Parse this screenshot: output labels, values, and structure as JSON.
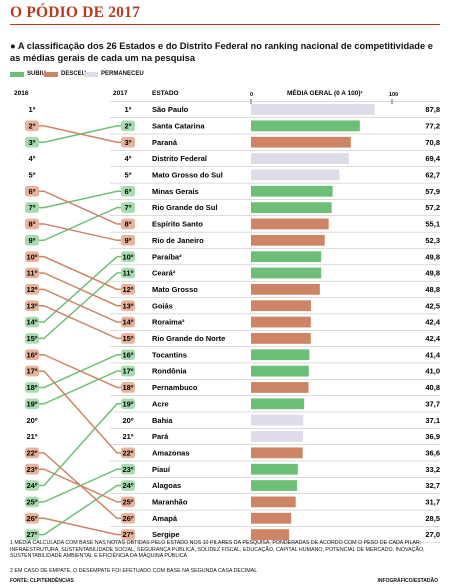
{
  "header": {
    "title": "O PÓDIO DE 2017",
    "intro": "● A classificação dos 26 Estados e do Distrito Federal no ranking nacional de competitividade e as médias gerais de cada um na pesquisa"
  },
  "legend": {
    "up": "SUBIU",
    "down": "DESCEU",
    "same": "PERMANECEU"
  },
  "colors": {
    "up": "#6dbf78",
    "down": "#cd8566",
    "same": "#dcdde8",
    "title": "#b83a1e"
  },
  "columns": {
    "y2016": "2016",
    "y2017": "2017",
    "estado": "ESTADO",
    "media": "MÉDIA GERAL (0 A 100)¹",
    "axis_min": "0",
    "axis_max": "100"
  },
  "chart_data": {
    "type": "bar",
    "title": "O PÓDIO DE 2017",
    "xlim": [
      0,
      100
    ],
    "rows": [
      {
        "state": "São Paulo",
        "rank2017": "1º",
        "rank2016": "1º",
        "r16": 1,
        "score": 87.8,
        "score_label": "87,8",
        "status": "same"
      },
      {
        "state": "Santa Catarina",
        "rank2017": "2º",
        "rank2016": "3º",
        "r16": 3,
        "score": 77.2,
        "score_label": "77,2",
        "status": "up"
      },
      {
        "state": "Paraná",
        "rank2017": "3º",
        "rank2016": "2º",
        "r16": 2,
        "score": 70.8,
        "score_label": "70,8",
        "status": "down"
      },
      {
        "state": "Distrito Federal",
        "rank2017": "4º",
        "rank2016": "4º",
        "r16": 4,
        "score": 69.4,
        "score_label": "69,4",
        "status": "same"
      },
      {
        "state": "Mato Grosso do Sul",
        "rank2017": "5º",
        "rank2016": "5º",
        "r16": 5,
        "score": 62.7,
        "score_label": "62,7",
        "status": "same"
      },
      {
        "state": "Minas Gerais",
        "rank2017": "6º",
        "rank2016": "7º",
        "r16": 7,
        "score": 57.9,
        "score_label": "57,9",
        "status": "up"
      },
      {
        "state": "Rio Grande do Sul",
        "rank2017": "7º",
        "rank2016": "9º",
        "r16": 9,
        "score": 57.2,
        "score_label": "57,2",
        "status": "up"
      },
      {
        "state": "Espírito Santo",
        "rank2017": "8º",
        "rank2016": "6º",
        "r16": 6,
        "score": 55.1,
        "score_label": "55,1",
        "status": "down"
      },
      {
        "state": "Rio de Janeiro",
        "rank2017": "9º",
        "rank2016": "8º",
        "r16": 8,
        "score": 52.3,
        "score_label": "52,3",
        "status": "down"
      },
      {
        "state": "Paraíba²",
        "rank2017": "10º",
        "rank2016": "14º",
        "r16": 14,
        "score": 49.8,
        "score_label": "49,8",
        "status": "up"
      },
      {
        "state": "Ceará²",
        "rank2017": "11º",
        "rank2016": "15º",
        "r16": 15,
        "score": 49.8,
        "score_label": "49,8",
        "status": "up"
      },
      {
        "state": "Mato Grosso",
        "rank2017": "12º",
        "rank2016": "10º",
        "r16": 10,
        "score": 48.8,
        "score_label": "48,8",
        "status": "down"
      },
      {
        "state": "Goiás",
        "rank2017": "13º",
        "rank2016": "11º",
        "r16": 11,
        "score": 42.5,
        "score_label": "42,5",
        "status": "down"
      },
      {
        "state": "Roraima²",
        "rank2017": "14º",
        "rank2016": "12º",
        "r16": 12,
        "score": 42.4,
        "score_label": "42,4",
        "status": "down"
      },
      {
        "state": "Rio Grande do Norte",
        "rank2017": "15º",
        "rank2016": "13º",
        "r16": 13,
        "score": 42.4,
        "score_label": "42,4",
        "status": "down"
      },
      {
        "state": "Tocantins",
        "rank2017": "16º",
        "rank2016": "18º",
        "r16": 18,
        "score": 41.4,
        "score_label": "41,4",
        "status": "up"
      },
      {
        "state": "Rondônia",
        "rank2017": "17º",
        "rank2016": "19º",
        "r16": 19,
        "score": 41.0,
        "score_label": "41,0",
        "status": "up"
      },
      {
        "state": "Pernambuco",
        "rank2017": "18º",
        "rank2016": "16º",
        "r16": 16,
        "score": 40.8,
        "score_label": "40,8",
        "status": "down"
      },
      {
        "state": "Acre",
        "rank2017": "19º",
        "rank2016": "24º",
        "r16": 24,
        "score": 37.7,
        "score_label": "37,7",
        "status": "up"
      },
      {
        "state": "Bahia",
        "rank2017": "20º",
        "rank2016": "20º",
        "r16": 20,
        "score": 37.1,
        "score_label": "37,1",
        "status": "same"
      },
      {
        "state": "Pará",
        "rank2017": "21º",
        "rank2016": "21º",
        "r16": 21,
        "score": 36.9,
        "score_label": "36,9",
        "status": "same"
      },
      {
        "state": "Amazonas",
        "rank2017": "22º",
        "rank2016": "17º",
        "r16": 17,
        "score": 36.6,
        "score_label": "36,6",
        "status": "down"
      },
      {
        "state": "Piauí",
        "rank2017": "23º",
        "rank2016": "25º",
        "r16": 25,
        "score": 33.2,
        "score_label": "33,2",
        "status": "up"
      },
      {
        "state": "Alagoas",
        "rank2017": "24º",
        "rank2016": "27º",
        "r16": 27,
        "score": 32.7,
        "score_label": "32,7",
        "status": "up"
      },
      {
        "state": "Maranhão",
        "rank2017": "25º",
        "rank2016": "23º",
        "r16": 23,
        "score": 31.7,
        "score_label": "31,7",
        "status": "down"
      },
      {
        "state": "Amapá",
        "rank2017": "26º",
        "rank2016": "22º",
        "r16": 22,
        "score": 28.5,
        "score_label": "28,5",
        "status": "down"
      },
      {
        "state": "Sergipe",
        "rank2017": "27º",
        "rank2016": "26º",
        "r16": 26,
        "score": 27.0,
        "score_label": "27,0",
        "status": "down"
      }
    ]
  },
  "footnotes": {
    "n1": "1 MÉDIA CALCULADA COM BASE NAS NOTAS OBTIDAS PELO ESTADO NOS 10 PILARES DA PESQUISA, PONDERADAS DE ACORDO COM O PESO DE CADA PILAR: INFRAESTRUTURA, SUSTENTABILIDADE SOCIAL, SEGURANÇA PÚBLICA, SOLIDEZ FISCAL, EDUCAÇÃO, CAPITAL HUMANO, POTENCIAL DE MERCADO, INOVAÇÃO, SUSTENTABILIDADE AMBIENTAL E EFICIÊNCIA DA MÁQUINA PÚBLICA",
    "n2": "2 EM CASO DE EMPATE, O DESEMPATE FOI EFETUADO COM BASE NA SEGUNDA CASA DECIMAL",
    "source": "FONTE: CLP/TENDÊNCIAS",
    "credit": "INFOGRÁFICO/ESTADÃO"
  }
}
